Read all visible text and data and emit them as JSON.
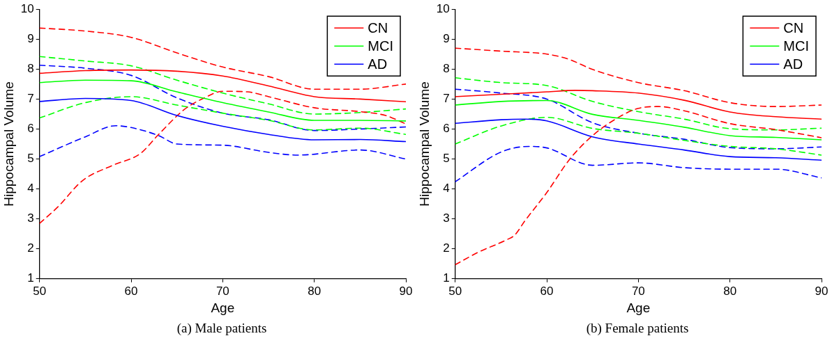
{
  "chart_data": [
    {
      "type": "line",
      "xlabel": "Age",
      "ylabel": "Hippocampal Volume",
      "xlim": [
        50,
        90
      ],
      "ylim": [
        1,
        10
      ],
      "xticks": [
        50,
        60,
        70,
        80,
        90
      ],
      "yticks": [
        1,
        2,
        3,
        4,
        5,
        6,
        7,
        8,
        9,
        10
      ],
      "grid": false,
      "legend": "top right",
      "marker": "none",
      "annotations": [
        "(a) Male patients"
      ],
      "series": [
        {
          "name": "CN",
          "color": "#ff0000",
          "line_style": "solid",
          "x": [
            50,
            55,
            60,
            65,
            70,
            75,
            80,
            85,
            90
          ],
          "values": [
            7.86,
            7.95,
            7.97,
            7.93,
            7.77,
            7.44,
            7.08,
            7.0,
            6.91
          ]
        },
        {
          "name": "MCI",
          "color": "#00ff00",
          "line_style": "solid",
          "x": [
            50,
            55,
            60,
            65,
            70,
            75,
            80,
            85,
            90
          ],
          "values": [
            7.55,
            7.63,
            7.61,
            7.24,
            6.88,
            6.57,
            6.29,
            6.29,
            6.27
          ]
        },
        {
          "name": "AD",
          "color": "#0000ff",
          "line_style": "solid",
          "x": [
            50,
            55,
            60,
            65,
            70,
            75,
            80,
            85,
            90
          ],
          "values": [
            6.92,
            7.02,
            6.95,
            6.45,
            6.09,
            5.82,
            5.64,
            5.65,
            5.58
          ]
        },
        {
          "color": "#ff0000",
          "line_style": "dashed",
          "x": [
            50,
            55,
            60,
            65,
            70,
            75,
            80,
            85,
            90
          ],
          "values": [
            9.37,
            9.27,
            9.06,
            8.54,
            8.07,
            7.75,
            7.33,
            7.33,
            7.5
          ]
        },
        {
          "color": "#ff0000",
          "line_style": "dashed",
          "x": [
            50,
            52,
            54.7,
            58,
            61,
            63,
            65.8,
            68,
            70,
            72.7,
            75,
            80,
            85,
            87.8,
            90
          ],
          "values": [
            2.85,
            3.4,
            4.28,
            4.79,
            5.18,
            5.82,
            6.65,
            7.04,
            7.26,
            7.24,
            7.08,
            6.71,
            6.58,
            6.45,
            6.17
          ]
        },
        {
          "color": "#00ff00",
          "line_style": "dashed",
          "x": [
            50,
            55,
            60,
            65,
            70,
            75,
            80,
            85,
            90
          ],
          "values": [
            8.42,
            8.27,
            8.11,
            7.63,
            7.2,
            6.84,
            6.5,
            6.55,
            6.67
          ]
        },
        {
          "color": "#00ff00",
          "line_style": "dashed",
          "x": [
            50,
            55,
            60,
            65,
            70,
            75,
            80,
            85,
            90
          ],
          "values": [
            6.37,
            6.88,
            7.08,
            6.8,
            6.53,
            6.29,
            5.97,
            6.03,
            5.82
          ]
        },
        {
          "color": "#0000ff",
          "line_style": "dashed",
          "x": [
            50,
            55,
            60,
            65,
            70,
            75,
            80,
            85,
            90
          ],
          "values": [
            8.13,
            8.03,
            7.79,
            7.04,
            6.53,
            6.31,
            5.95,
            6.0,
            6.07
          ]
        },
        {
          "color": "#0000ff",
          "line_style": "dashed",
          "x": [
            50,
            55,
            58.3,
            60,
            63,
            65,
            70,
            75,
            78.2,
            85,
            90
          ],
          "values": [
            5.08,
            5.74,
            6.11,
            6.05,
            5.78,
            5.5,
            5.46,
            5.22,
            5.13,
            5.3,
            5.0
          ]
        }
      ]
    },
    {
      "type": "line",
      "xlabel": "Age",
      "ylabel": "Hippocampal Volume",
      "xlim": [
        50,
        90
      ],
      "ylim": [
        1,
        10
      ],
      "xticks": [
        50,
        60,
        70,
        80,
        90
      ],
      "yticks": [
        1,
        2,
        3,
        4,
        5,
        6,
        7,
        8,
        9,
        10
      ],
      "grid": false,
      "legend": "top right",
      "marker": "none",
      "annotations": [
        "(b) Female patients"
      ],
      "series": [
        {
          "name": "CN",
          "color": "#ff0000",
          "line_style": "solid",
          "x": [
            50,
            55,
            60,
            63.1,
            65,
            70,
            75,
            80,
            85,
            90
          ],
          "values": [
            7.08,
            7.16,
            7.24,
            7.29,
            7.28,
            7.2,
            6.96,
            6.57,
            6.41,
            6.33
          ]
        },
        {
          "name": "MCI",
          "color": "#00ff00",
          "line_style": "solid",
          "x": [
            50,
            55,
            60,
            65,
            70,
            75,
            80,
            85,
            90
          ],
          "values": [
            6.8,
            6.92,
            6.95,
            6.49,
            6.29,
            6.06,
            5.78,
            5.72,
            5.64
          ]
        },
        {
          "name": "AD",
          "color": "#0000ff",
          "line_style": "solid",
          "x": [
            50,
            55,
            57.6,
            60,
            65,
            70,
            75,
            80,
            85,
            90
          ],
          "values": [
            6.19,
            6.31,
            6.33,
            6.27,
            5.74,
            5.5,
            5.3,
            5.08,
            5.04,
            4.96
          ]
        },
        {
          "color": "#ff0000",
          "line_style": "dashed",
          "x": [
            50,
            55,
            60,
            62.3,
            65,
            70,
            75,
            80,
            85,
            90
          ],
          "values": [
            8.7,
            8.6,
            8.5,
            8.34,
            7.99,
            7.55,
            7.28,
            6.88,
            6.75,
            6.8
          ]
        },
        {
          "color": "#ff0000",
          "line_style": "dashed",
          "x": [
            50,
            52.6,
            55.6,
            56.5,
            57.6,
            60,
            62.5,
            65,
            68,
            70,
            72.2,
            75,
            80,
            85,
            90
          ],
          "values": [
            1.47,
            1.9,
            2.3,
            2.46,
            2.93,
            3.88,
            4.99,
            5.78,
            6.42,
            6.69,
            6.75,
            6.61,
            6.18,
            5.98,
            5.71
          ]
        },
        {
          "color": "#00ff00",
          "line_style": "dashed",
          "x": [
            50,
            55,
            60,
            65,
            70,
            75,
            80,
            85,
            90
          ],
          "values": [
            7.71,
            7.55,
            7.45,
            6.92,
            6.58,
            6.33,
            6.01,
            5.97,
            6.03
          ]
        },
        {
          "color": "#00ff00",
          "line_style": "dashed",
          "x": [
            50,
            55,
            60,
            65,
            70,
            75,
            80,
            85,
            90
          ],
          "values": [
            5.5,
            6.1,
            6.39,
            6.02,
            5.86,
            5.62,
            5.42,
            5.34,
            5.13
          ]
        },
        {
          "color": "#0000ff",
          "line_style": "dashed",
          "x": [
            50,
            55,
            60,
            65,
            70,
            75,
            80,
            85,
            90
          ],
          "values": [
            7.33,
            7.2,
            7.0,
            6.21,
            5.86,
            5.66,
            5.38,
            5.34,
            5.4
          ]
        },
        {
          "color": "#0000ff",
          "line_style": "dashed",
          "x": [
            50,
            55,
            58.1,
            60,
            65,
            70,
            75,
            80,
            85,
            90
          ],
          "values": [
            4.24,
            5.23,
            5.42,
            5.37,
            4.79,
            4.87,
            4.71,
            4.66,
            4.66,
            4.37
          ]
        }
      ]
    }
  ]
}
